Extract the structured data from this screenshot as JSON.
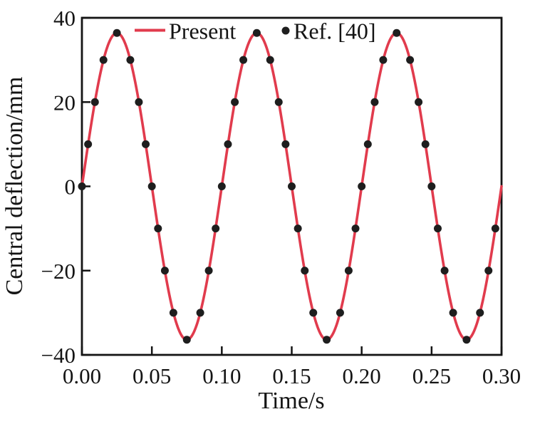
{
  "chart_data": {
    "type": "line",
    "title": "",
    "xlabel": "Time/s",
    "ylabel": "Central deflection/mm",
    "xlim": [
      0,
      0.3
    ],
    "ylim": [
      -40,
      40
    ],
    "grid": false,
    "legend_position": "top-inside",
    "xticks": [
      {
        "v": 0.0,
        "label": "0.00"
      },
      {
        "v": 0.05,
        "label": "0.05"
      },
      {
        "v": 0.1,
        "label": "0.10"
      },
      {
        "v": 0.15,
        "label": "0.15"
      },
      {
        "v": 0.2,
        "label": "0.20"
      },
      {
        "v": 0.25,
        "label": "0.25"
      },
      {
        "v": 0.3,
        "label": "0.30"
      }
    ],
    "yticks": [
      {
        "v": -40,
        "label": "−40"
      },
      {
        "v": -20,
        "label": "−20"
      },
      {
        "v": 0,
        "label": "0"
      },
      {
        "v": 20,
        "label": "20"
      },
      {
        "v": 40,
        "label": "40"
      }
    ],
    "series": [
      {
        "name": "Present",
        "type": "line",
        "color": "#e13b4d",
        "line_width": 3.6,
        "model": {
          "kind": "sine",
          "amplitude_mm": 36.4,
          "period_s": 0.1,
          "phase": 0
        },
        "x_range": [
          0,
          0.3
        ]
      },
      {
        "name": "Ref. [40]",
        "type": "scatter",
        "color": "#1e1e1e",
        "marker": "circle",
        "marker_radius": 5.5,
        "points": [
          [
            0.0,
            0
          ],
          [
            0.0044,
            10
          ],
          [
            0.0093,
            20
          ],
          [
            0.0154,
            30
          ],
          [
            0.025,
            36.4
          ],
          [
            0.0346,
            30
          ],
          [
            0.0407,
            20
          ],
          [
            0.0456,
            10
          ],
          [
            0.05,
            0
          ],
          [
            0.0544,
            -10
          ],
          [
            0.0593,
            -20
          ],
          [
            0.0654,
            -30
          ],
          [
            0.075,
            -36.4
          ],
          [
            0.0846,
            -30
          ],
          [
            0.0907,
            -20
          ],
          [
            0.0956,
            -10
          ],
          [
            0.1,
            0
          ],
          [
            0.1044,
            10
          ],
          [
            0.1093,
            20
          ],
          [
            0.1154,
            30
          ],
          [
            0.125,
            36.4
          ],
          [
            0.1346,
            30
          ],
          [
            0.1407,
            20
          ],
          [
            0.1456,
            10
          ],
          [
            0.15,
            0
          ],
          [
            0.1544,
            -10
          ],
          [
            0.1593,
            -20
          ],
          [
            0.1654,
            -30
          ],
          [
            0.175,
            -36.4
          ],
          [
            0.1846,
            -30
          ],
          [
            0.1907,
            -20
          ],
          [
            0.1956,
            -10
          ],
          [
            0.2,
            0
          ],
          [
            0.2044,
            10
          ],
          [
            0.2093,
            20
          ],
          [
            0.2154,
            30
          ],
          [
            0.225,
            36.4
          ],
          [
            0.2346,
            30
          ],
          [
            0.2407,
            20
          ],
          [
            0.2456,
            10
          ],
          [
            0.25,
            0
          ],
          [
            0.2544,
            -10
          ],
          [
            0.2593,
            -20
          ],
          [
            0.2654,
            -30
          ],
          [
            0.275,
            -36.4
          ],
          [
            0.2846,
            -30
          ],
          [
            0.2907,
            -20
          ],
          [
            0.2956,
            -10
          ]
        ]
      }
    ]
  }
}
